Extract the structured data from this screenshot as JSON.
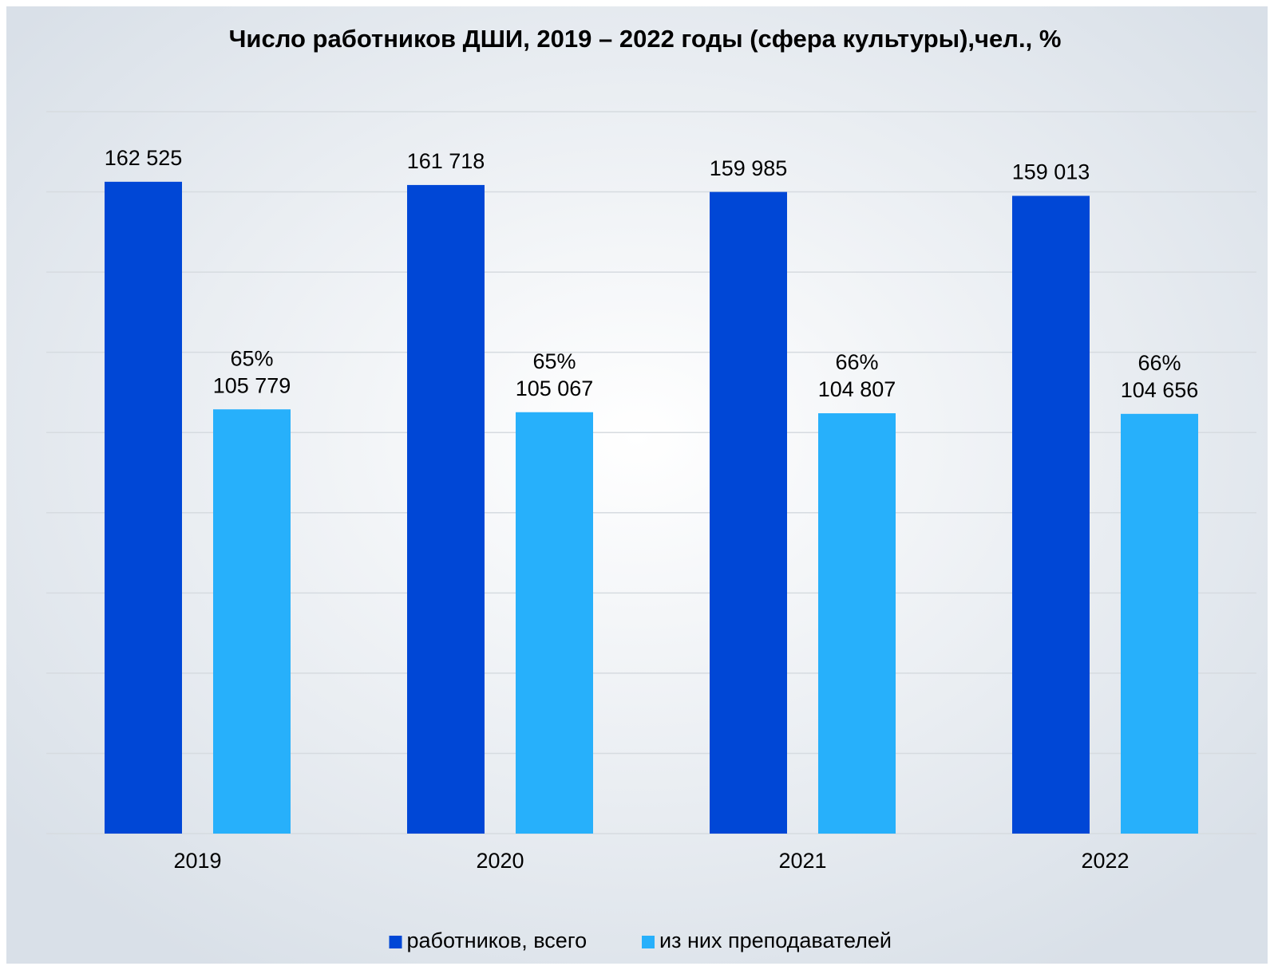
{
  "chart_data": {
    "type": "bar",
    "title": "Число работников ДШИ, 2019 – 2022 годы (сфера культуры),чел., %",
    "categories": [
      "2019",
      "2020",
      "2021",
      "2022"
    ],
    "series": [
      {
        "name": "работников, всего",
        "color": "#0047d6",
        "values": [
          162525,
          161718,
          159985,
          159013
        ],
        "value_labels": [
          "162 525",
          "161 718",
          "159 985",
          "159 013"
        ]
      },
      {
        "name": "из них преподавателей",
        "color": "#27b0fb",
        "values": [
          105779,
          105067,
          104807,
          104656
        ],
        "value_labels": [
          "105 779",
          "105 067",
          "104 807",
          "104 656"
        ],
        "shares": [
          65,
          65,
          66,
          66
        ],
        "share_labels": [
          "65%",
          "65%",
          "66%",
          "66%"
        ]
      }
    ],
    "ylim": [
      0,
      180000
    ],
    "yticks": [
      0,
      20000,
      40000,
      60000,
      80000,
      100000,
      120000,
      140000,
      160000,
      180000
    ],
    "grid": true,
    "legend": "bottom"
  }
}
